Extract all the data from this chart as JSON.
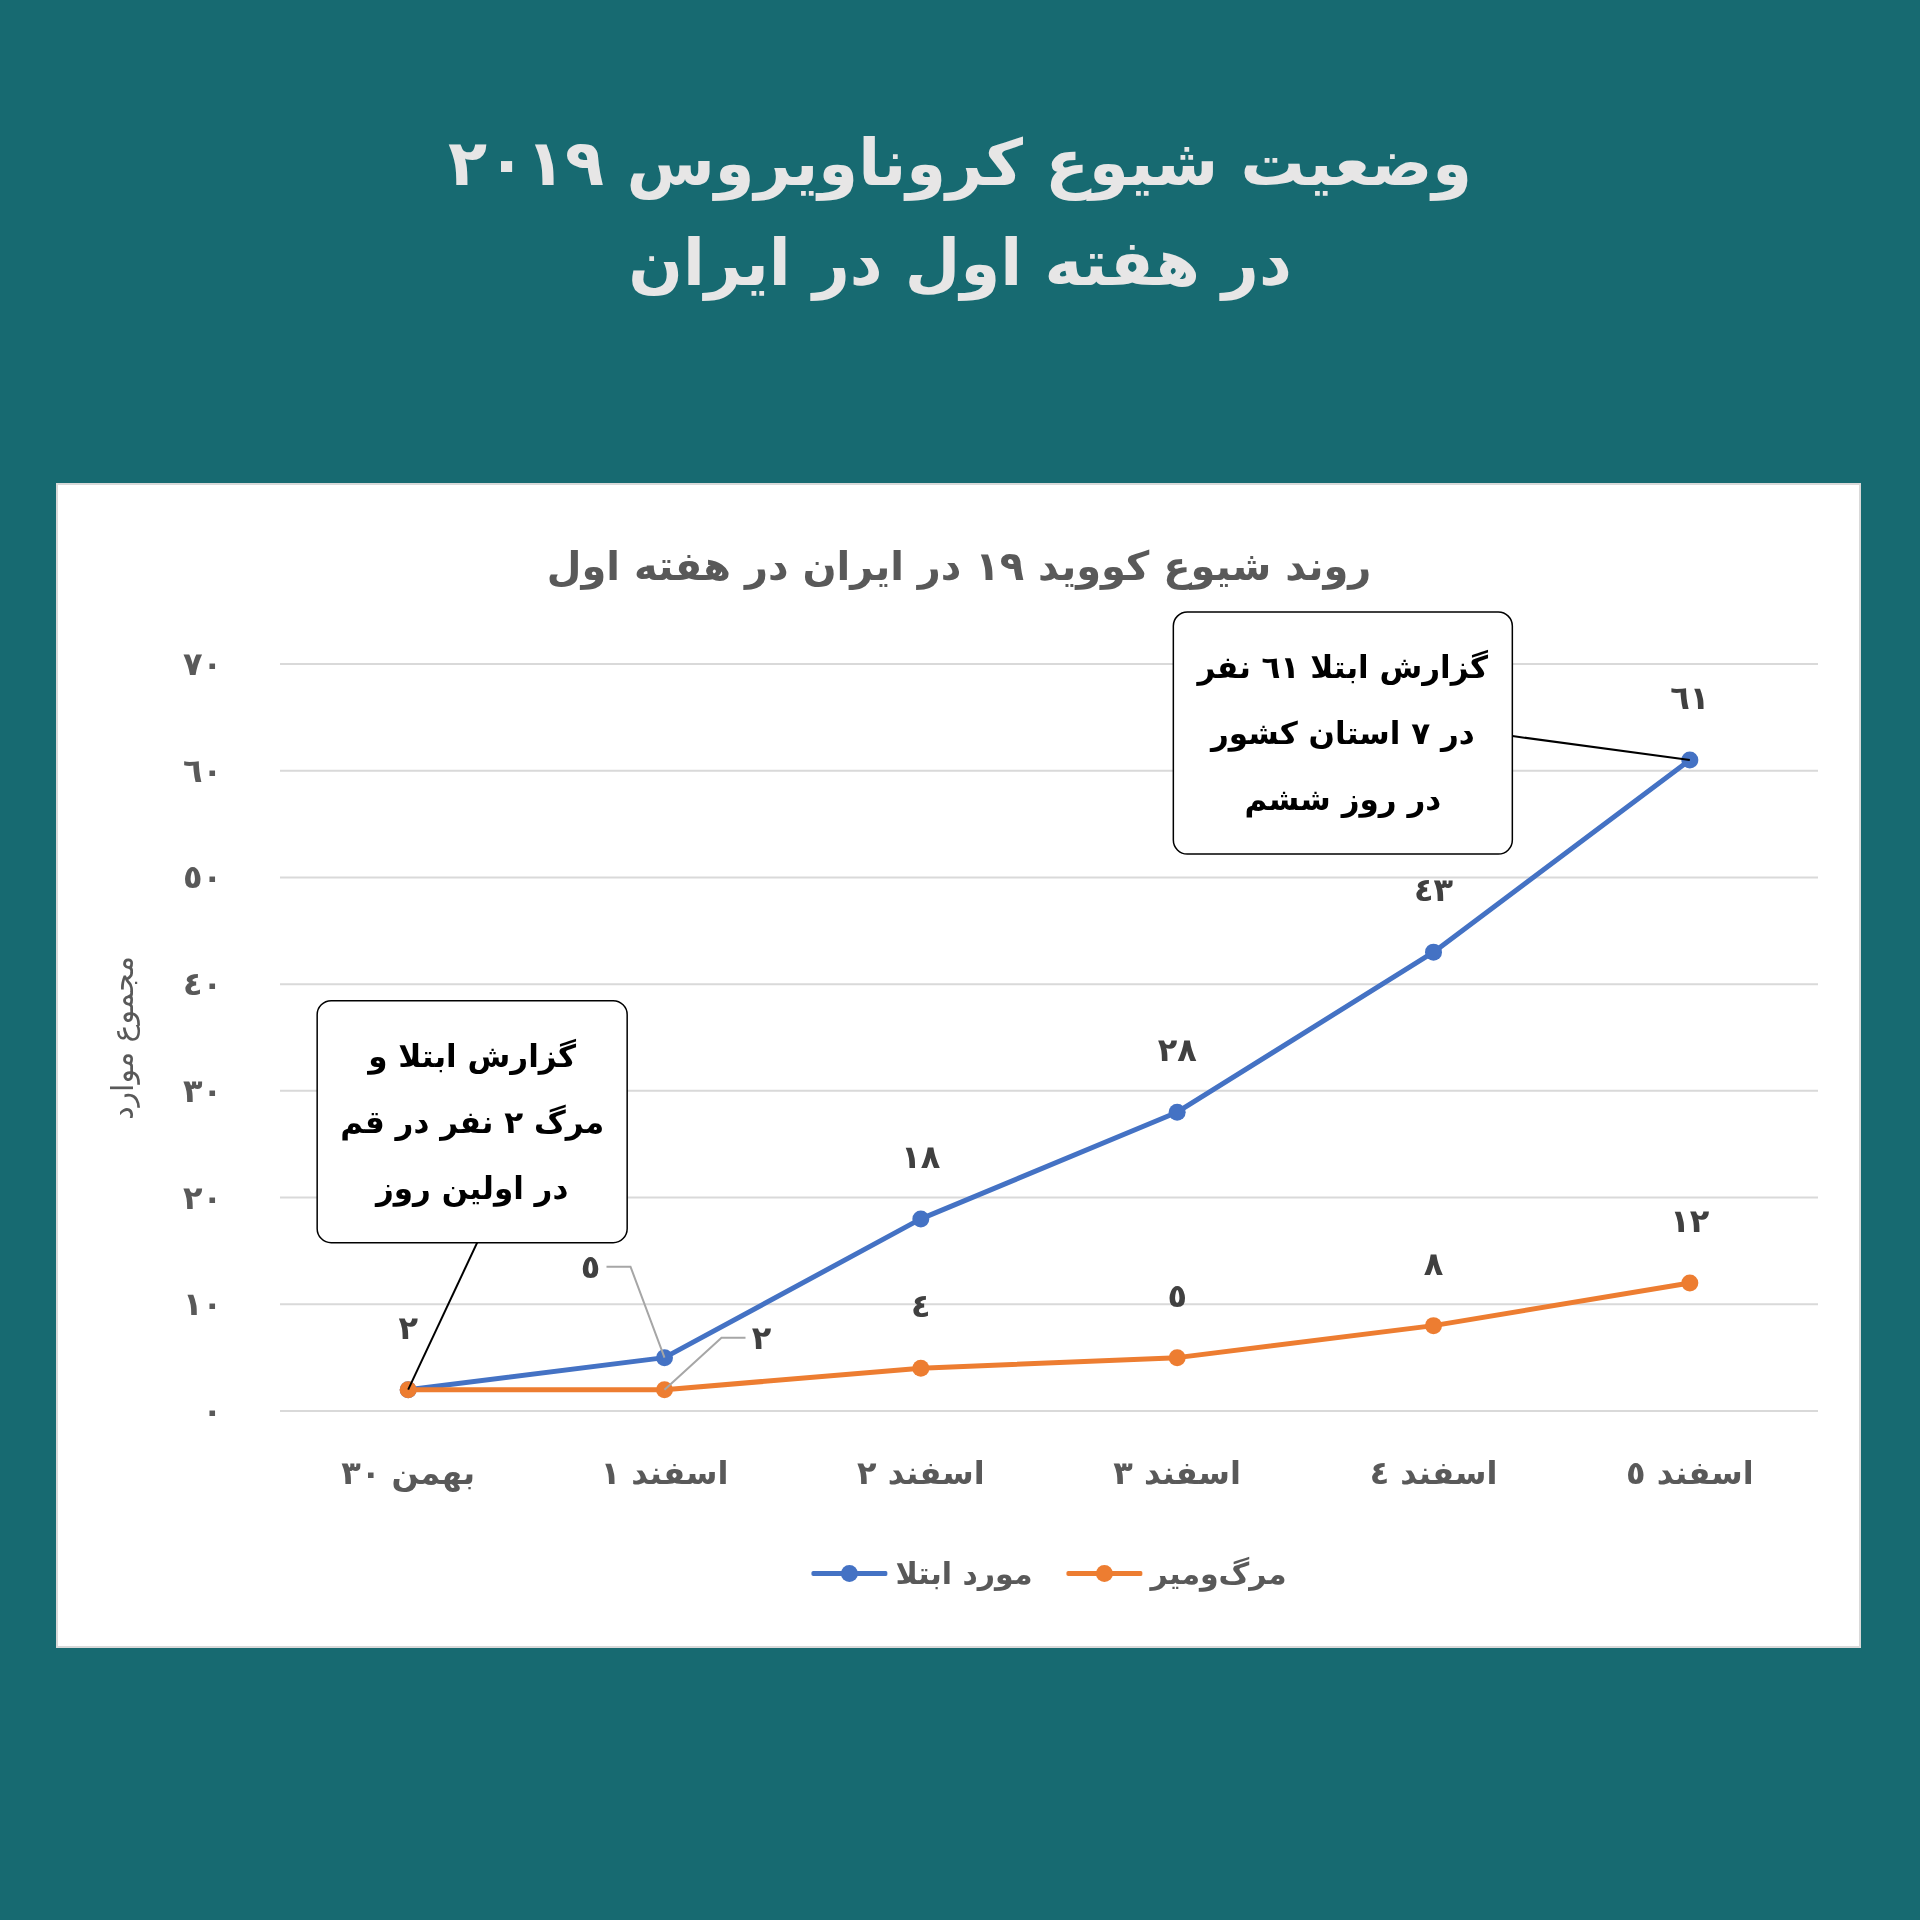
{
  "chart_data": {
    "type": "line",
    "title": "وضعیت شیوع کروناویروس ٢٠١٩ در هفته اول در ایران",
    "subtitle": "روند شیوع کووید ١٩ در ایران در هفته اول",
    "ylabel": "مجموع موارد",
    "categories": [
      "بهمن ٣٠",
      "اسفند ١",
      "اسفند ٢",
      "اسفند ٣",
      "اسفند ٤",
      "اسفند ٥"
    ],
    "series": [
      {
        "name": "مورد ابتلا",
        "color": "#4472c4",
        "values": [
          2,
          5,
          18,
          28,
          43,
          61
        ],
        "value_labels": [
          "٢",
          "٥",
          "١٨",
          "٢٨",
          "٤٣",
          "٦١"
        ]
      },
      {
        "name": "مرگ‌ومیر",
        "color": "#ed7d31",
        "values": [
          2,
          2,
          4,
          5,
          8,
          12
        ],
        "value_labels": [
          null,
          "٢",
          "٤",
          "٥",
          "٨",
          "١٢"
        ]
      }
    ],
    "ylim": [
      0,
      70
    ],
    "yticks": [
      {
        "value": 0,
        "label": "٠"
      },
      {
        "value": 10,
        "label": "١٠"
      },
      {
        "value": 20,
        "label": "٢٠"
      },
      {
        "value": 30,
        "label": "٣٠"
      },
      {
        "value": 40,
        "label": "٤٠"
      },
      {
        "value": 50,
        "label": "٥٠"
      },
      {
        "value": 60,
        "label": "٦٠"
      },
      {
        "value": 70,
        "label": "٧٠"
      }
    ],
    "grid": "y",
    "legend": "bottom",
    "marker": "circle",
    "line_style": "solid",
    "annotations": [
      {
        "text": "گزارش ابتلا و مرگ ٢ نفر در قم در اولین روز",
        "x": "بهمن ٣٠",
        "y": 2
      },
      {
        "text": "گزارش ابتلا ٦١ نفر در ٧ استان کشور در روز ششم",
        "x": "اسفند ٥",
        "y": 61
      }
    ]
  }
}
